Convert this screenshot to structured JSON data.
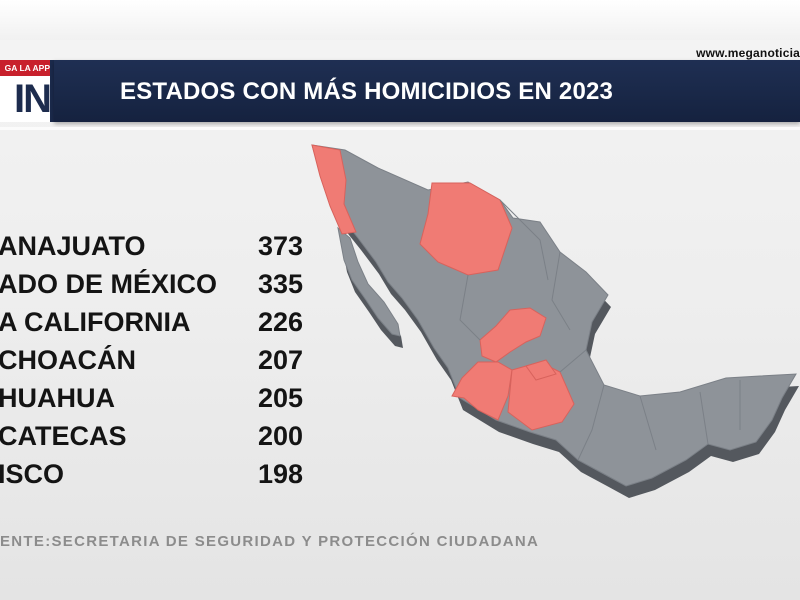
{
  "header": {
    "site_url": "www.meganoticia",
    "logo_tag": "GA LA APP",
    "logo_mark": "IN",
    "title": "ESTADOS CON MÁS HOMICIDIOS EN 2023"
  },
  "colors": {
    "title_bar": "#1b2a4c",
    "logo_red": "#c8202c",
    "map_gray": "#8e9399",
    "map_side": "#54585e",
    "highlight": "#f07b74",
    "highlight_side": "#9a4c49"
  },
  "icons": {
    "map": "mexico-map-icon"
  },
  "chart_data": {
    "type": "table",
    "title": "ESTADOS CON MÁS HOMICIDIOS EN 2023",
    "categories": [
      "ANAJUATO",
      "ADO DE MÉXICO",
      "A CALIFORNIA",
      "CHOACÁN",
      "HUAHUA",
      "CATECAS",
      "ISCO"
    ],
    "values": [
      373,
      335,
      226,
      207,
      205,
      200,
      198
    ],
    "highlighted_states_on_map": [
      "Baja California",
      "Chihuahua",
      "Zacatecas",
      "Jalisco",
      "Guanajuato",
      "Michoacán",
      "Estado de México"
    ]
  },
  "footer": {
    "source": "ENTE:SECRETARIA DE SEGURIDAD Y PROTECCIÓN CIUDADANA"
  }
}
